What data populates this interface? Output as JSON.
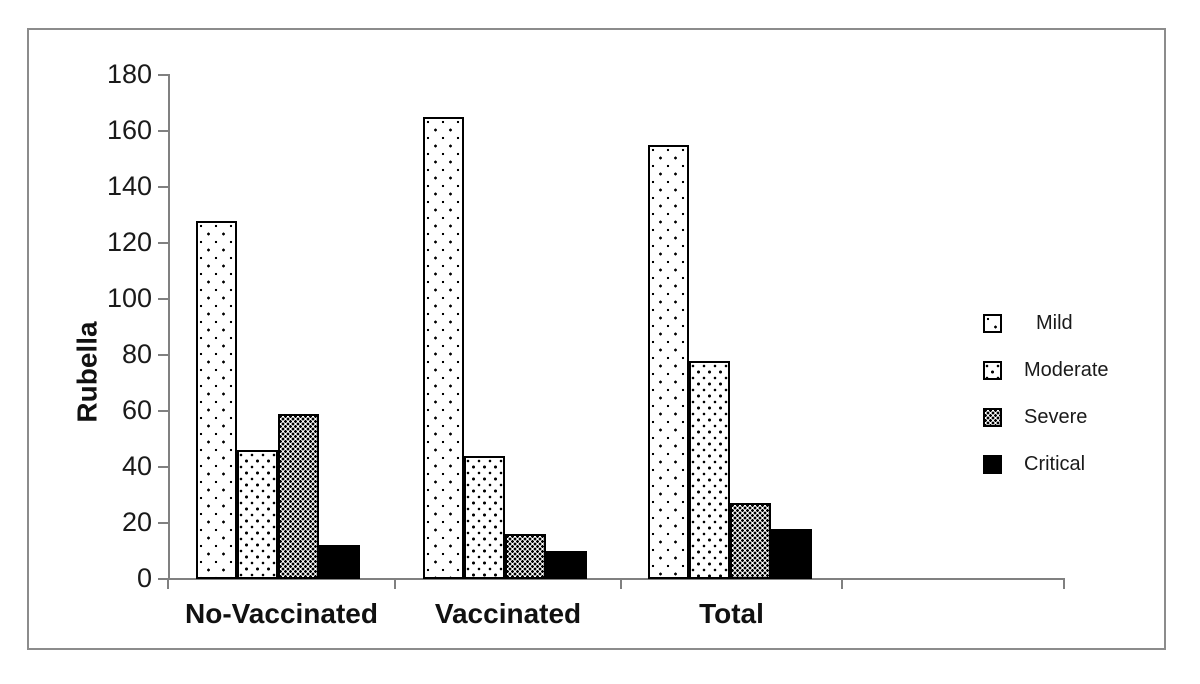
{
  "chart_data": {
    "type": "bar",
    "title": "",
    "ylabel": "Rubella",
    "xlabel": "",
    "categories": [
      "No-Vaccinated",
      "Vaccinated",
      "Total"
    ],
    "series": [
      {
        "name": "Mild",
        "pattern": "dots-sparse",
        "values": [
          128,
          165,
          155
        ]
      },
      {
        "name": "Moderate",
        "pattern": "dots-medium",
        "values": [
          46,
          44,
          78
        ]
      },
      {
        "name": "Severe",
        "pattern": "dots-dense",
        "values": [
          59,
          16,
          27
        ]
      },
      {
        "name": "Critical",
        "pattern": "solid-black",
        "values": [
          12,
          10,
          18
        ]
      }
    ],
    "ylim": [
      0,
      180
    ],
    "ytick_step": 20,
    "yticks": [
      0,
      20,
      40,
      60,
      80,
      100,
      120,
      140,
      160,
      180
    ],
    "grid": false,
    "legend": {
      "position": "right",
      "entries": [
        "Mild",
        "Moderate",
        "Severe",
        "Critical"
      ]
    },
    "colors": {
      "axis": "#808080",
      "bar_outline": "#000000",
      "frame_border": "#8c8c8c",
      "text": "#1a1a1a"
    }
  }
}
